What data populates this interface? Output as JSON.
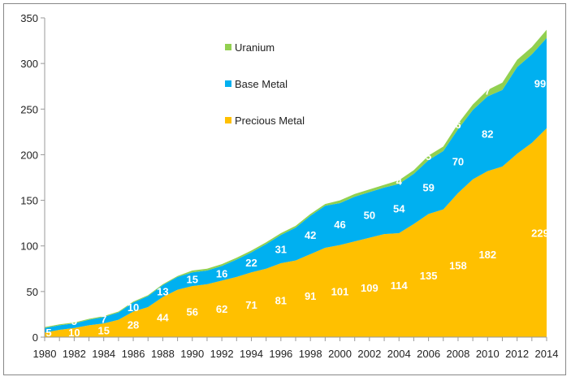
{
  "chart_data": {
    "type": "area",
    "stacked": true,
    "title": "",
    "xlabel": "",
    "ylabel": "",
    "x": [
      1980,
      1981,
      1982,
      1983,
      1984,
      1985,
      1986,
      1987,
      1988,
      1989,
      1990,
      1991,
      1992,
      1993,
      1994,
      1995,
      1996,
      1997,
      1998,
      1999,
      2000,
      2001,
      2002,
      2003,
      2004,
      2005,
      2006,
      2007,
      2008,
      2009,
      2010,
      2011,
      2012,
      2013,
      2014
    ],
    "xticks": [
      "1980",
      "1982",
      "1984",
      "1986",
      "1988",
      "1990",
      "1992",
      "1994",
      "1996",
      "1998",
      "2000",
      "2002",
      "2004",
      "2006",
      "2008",
      "2010",
      "2012",
      "2014"
    ],
    "yticks": [
      "0",
      "50",
      "100",
      "150",
      "200",
      "250",
      "300",
      "350"
    ],
    "ylim": [
      0,
      350
    ],
    "xlim": [
      1980,
      2014
    ],
    "grid": false,
    "legend": "upper-left-center",
    "series": [
      {
        "name": "Precious Metal",
        "color": "#FFC000",
        "values": [
          5,
          8,
          10,
          13,
          15,
          19,
          28,
          33,
          44,
          52,
          56,
          58,
          62,
          66,
          71,
          75,
          81,
          84,
          91,
          98,
          101,
          105,
          109,
          113,
          114,
          124,
          135,
          140,
          158,
          173,
          182,
          187,
          201,
          213,
          229
        ],
        "labels": {
          "1980": "5",
          "1982": "10",
          "1984": "15",
          "1986": "28",
          "1988": "44",
          "1990": "56",
          "1992": "62",
          "1994": "71",
          "1996": "81",
          "1998": "91",
          "2000": "101",
          "2002": "109",
          "2004": "114",
          "2006": "135",
          "2008": "158",
          "2010": "182",
          "2014": "229"
        }
      },
      {
        "name": "Base Metal",
        "color": "#00B0F0",
        "values": [
          5,
          5,
          5,
          6,
          7,
          8,
          10,
          12,
          13,
          14,
          15,
          15,
          16,
          19,
          22,
          27,
          31,
          36,
          42,
          46,
          46,
          49,
          50,
          51,
          54,
          55,
          59,
          64,
          70,
          76,
          82,
          84,
          95,
          97,
          99
        ],
        "labels": {
          "1980": "5",
          "1982": "5",
          "1984": "7",
          "1986": "10",
          "1988": "13",
          "1990": "15",
          "1992": "16",
          "1994": "22",
          "1996": "31",
          "1998": "42",
          "2000": "46",
          "2002": "50",
          "2004": "54",
          "2006": "59",
          "2008": "70",
          "2010": "82",
          "2014": "99"
        }
      },
      {
        "name": "Uranium",
        "color": "#92D050",
        "values": [
          1,
          1,
          1,
          1,
          1,
          1,
          1,
          1,
          1,
          1,
          2,
          2,
          2,
          2,
          2,
          2,
          2,
          2,
          2,
          2,
          3,
          3,
          3,
          3,
          4,
          4,
          5,
          5,
          6,
          6,
          7,
          8,
          8,
          8,
          9
        ],
        "labels": {
          "2004": "4",
          "2006": "5",
          "2008": "6",
          "2010": "7",
          "2014": "9"
        }
      }
    ]
  }
}
